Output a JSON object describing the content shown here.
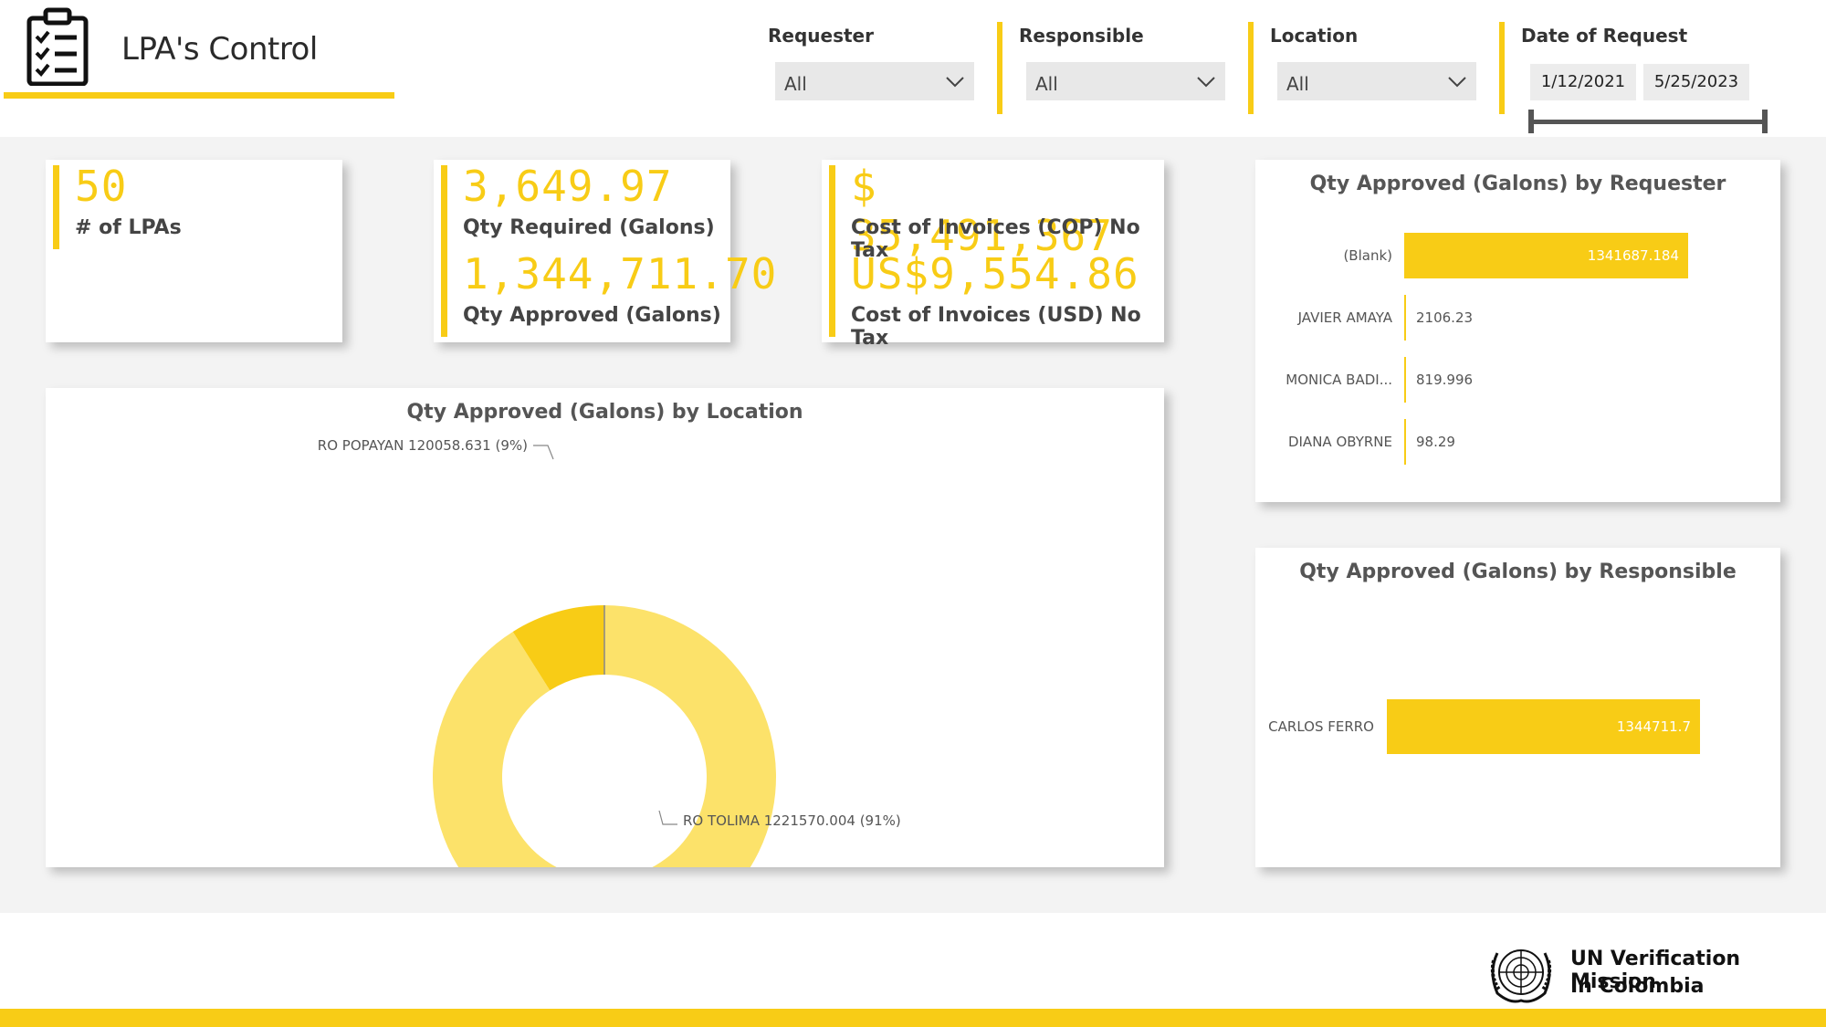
{
  "header": {
    "title": "LPA's Control",
    "icon": "clipboard-checklist-icon"
  },
  "slicers": {
    "requester": {
      "label": "Requester",
      "value": "All"
    },
    "responsible": {
      "label": "Responsible",
      "value": "All"
    },
    "location": {
      "label": "Location",
      "value": "All"
    },
    "date": {
      "label": "Date of Request",
      "start": "1/12/2021",
      "end": "5/25/2023"
    }
  },
  "kpis": {
    "lpas": {
      "value": "50",
      "label": "# of LPAs"
    },
    "qty_required": {
      "value": "3,649.97",
      "label": "Qty Required (Galons)"
    },
    "qty_approved": {
      "value": "1,344,711.70",
      "label": "Qty Approved (Galons)"
    },
    "cost_cop": {
      "value": "$ 35,491,367",
      "label": "Cost of Invoices (COP) No Tax"
    },
    "cost_usd": {
      "value": "US$9,554.86",
      "label": "Cost of Invoices (USD) No Tax"
    }
  },
  "chart_data": [
    {
      "type": "pie",
      "title": "Qty Approved (Galons) by Location",
      "donut": true,
      "categories": [
        "RO TOLIMA",
        "RO POPAYAN"
      ],
      "values": [
        1221570.004,
        120058.631
      ],
      "labels": [
        "RO TOLIMA 1221570.004 (91%)",
        "RO POPAYAN 120058.631 (9%)"
      ],
      "colors": [
        "#fce26a",
        "#f8cc16"
      ]
    },
    {
      "type": "bar",
      "orientation": "horizontal",
      "title": "Qty Approved (Galons) by Requester",
      "categories": [
        "(Blank)",
        "JAVIER AMAYA",
        "MONICA BADI...",
        "DIANA OBYRNE"
      ],
      "values": [
        1341687.184,
        2106.23,
        819.996,
        98.29
      ],
      "value_labels": [
        "1341687.184",
        "2106.23",
        "819.996",
        "98.29"
      ],
      "color": "#f8cc16"
    },
    {
      "type": "bar",
      "orientation": "horizontal",
      "title": "Qty Approved (Galons) by Responsible",
      "categories": [
        "CARLOS FERRO"
      ],
      "values": [
        1344711.7
      ],
      "value_labels": [
        "1344711.7"
      ],
      "color": "#f8cc16"
    }
  ],
  "footer": {
    "org_line1": "UN Verification Mission",
    "org_line2": "In Colombia",
    "logo": "un-emblem-icon"
  },
  "colors": {
    "accent": "#f8cc16",
    "accent_light": "#fce26a",
    "canvas": "#f3f3f3"
  }
}
